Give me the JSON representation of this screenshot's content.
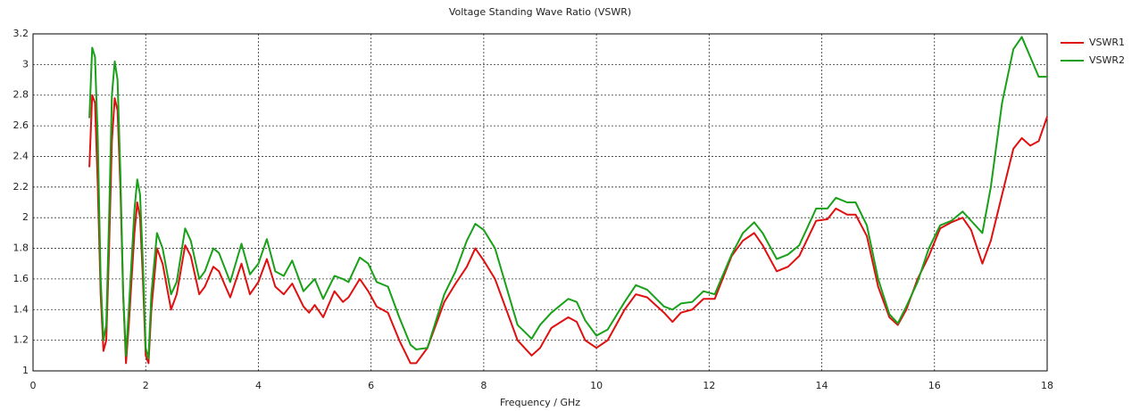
{
  "chart_data": {
    "type": "line",
    "title": "Voltage Standing Wave Ratio (VSWR)",
    "xlabel": "Frequency / GHz",
    "xlim": [
      0,
      18
    ],
    "xticks": [
      0,
      2,
      4,
      6,
      8,
      10,
      12,
      14,
      16,
      18
    ],
    "ylim": [
      1,
      3.2
    ],
    "yticks": [
      1,
      1.2,
      1.4,
      1.6,
      1.8,
      2,
      2.2,
      2.4,
      2.6,
      2.8,
      3,
      3.2
    ],
    "grid": true,
    "legend": "right",
    "x": [
      1.0,
      1.05,
      1.1,
      1.15,
      1.2,
      1.25,
      1.3,
      1.35,
      1.4,
      1.45,
      1.5,
      1.55,
      1.6,
      1.65,
      1.7,
      1.8,
      1.85,
      1.9,
      1.95,
      2.0,
      2.05,
      2.1,
      2.2,
      2.3,
      2.45,
      2.55,
      2.7,
      2.8,
      2.95,
      3.05,
      3.2,
      3.3,
      3.5,
      3.7,
      3.85,
      4.0,
      4.15,
      4.3,
      4.45,
      4.6,
      4.8,
      4.9,
      5.0,
      5.15,
      5.35,
      5.5,
      5.6,
      5.8,
      5.95,
      6.1,
      6.3,
      6.5,
      6.7,
      6.8,
      7.0,
      7.3,
      7.5,
      7.7,
      7.85,
      8.0,
      8.2,
      8.4,
      8.6,
      8.85,
      9.0,
      9.2,
      9.5,
      9.65,
      9.8,
      10.0,
      10.2,
      10.5,
      10.7,
      10.9,
      11.2,
      11.35,
      11.5,
      11.7,
      11.9,
      12.1,
      12.4,
      12.6,
      12.8,
      12.95,
      13.2,
      13.4,
      13.6,
      13.9,
      14.1,
      14.25,
      14.45,
      14.6,
      14.8,
      15.0,
      15.2,
      15.35,
      15.5,
      15.7,
      15.9,
      16.1,
      16.3,
      16.5,
      16.65,
      16.85,
      17.0,
      17.2,
      17.4,
      17.55,
      17.7,
      17.85,
      18.0
    ],
    "series": [
      {
        "name": "VSWR1",
        "color": "#e01010",
        "values": [
          2.33,
          2.8,
          2.75,
          2.2,
          1.5,
          1.13,
          1.2,
          1.8,
          2.5,
          2.78,
          2.7,
          2.2,
          1.5,
          1.05,
          1.3,
          1.9,
          2.1,
          2.0,
          1.6,
          1.1,
          1.05,
          1.4,
          1.8,
          1.7,
          1.4,
          1.5,
          1.82,
          1.75,
          1.5,
          1.55,
          1.68,
          1.65,
          1.48,
          1.7,
          1.5,
          1.58,
          1.73,
          1.55,
          1.5,
          1.57,
          1.42,
          1.38,
          1.43,
          1.35,
          1.52,
          1.45,
          1.48,
          1.6,
          1.52,
          1.42,
          1.38,
          1.2,
          1.05,
          1.05,
          1.15,
          1.45,
          1.57,
          1.68,
          1.8,
          1.72,
          1.6,
          1.4,
          1.2,
          1.1,
          1.15,
          1.28,
          1.35,
          1.32,
          1.2,
          1.15,
          1.2,
          1.4,
          1.5,
          1.48,
          1.38,
          1.32,
          1.38,
          1.4,
          1.47,
          1.47,
          1.75,
          1.85,
          1.9,
          1.82,
          1.65,
          1.68,
          1.75,
          1.98,
          1.99,
          2.06,
          2.02,
          2.02,
          1.88,
          1.55,
          1.35,
          1.3,
          1.4,
          1.6,
          1.75,
          1.93,
          1.97,
          2.0,
          1.92,
          1.7,
          1.85,
          2.15,
          2.45,
          2.52,
          2.47,
          2.5,
          2.66
        ]
      },
      {
        "name": "VSWR2",
        "color": "#19a019",
        "values": [
          2.65,
          3.11,
          3.05,
          2.5,
          1.6,
          1.2,
          1.3,
          2.0,
          2.8,
          3.02,
          2.9,
          2.3,
          1.5,
          1.1,
          1.4,
          2.05,
          2.25,
          2.15,
          1.7,
          1.15,
          1.08,
          1.5,
          1.9,
          1.8,
          1.5,
          1.58,
          1.93,
          1.85,
          1.6,
          1.65,
          1.8,
          1.77,
          1.58,
          1.83,
          1.63,
          1.7,
          1.86,
          1.65,
          1.62,
          1.72,
          1.52,
          1.56,
          1.6,
          1.47,
          1.62,
          1.6,
          1.58,
          1.74,
          1.7,
          1.58,
          1.55,
          1.35,
          1.17,
          1.14,
          1.15,
          1.5,
          1.65,
          1.85,
          1.96,
          1.92,
          1.8,
          1.55,
          1.3,
          1.21,
          1.3,
          1.38,
          1.47,
          1.45,
          1.33,
          1.23,
          1.27,
          1.45,
          1.56,
          1.53,
          1.42,
          1.4,
          1.44,
          1.45,
          1.52,
          1.5,
          1.76,
          1.9,
          1.97,
          1.9,
          1.73,
          1.76,
          1.82,
          2.06,
          2.06,
          2.13,
          2.1,
          2.1,
          1.95,
          1.6,
          1.37,
          1.31,
          1.42,
          1.58,
          1.8,
          1.95,
          1.98,
          2.04,
          1.98,
          1.9,
          2.2,
          2.75,
          3.1,
          3.18,
          3.05,
          2.92,
          2.92
        ]
      }
    ]
  }
}
